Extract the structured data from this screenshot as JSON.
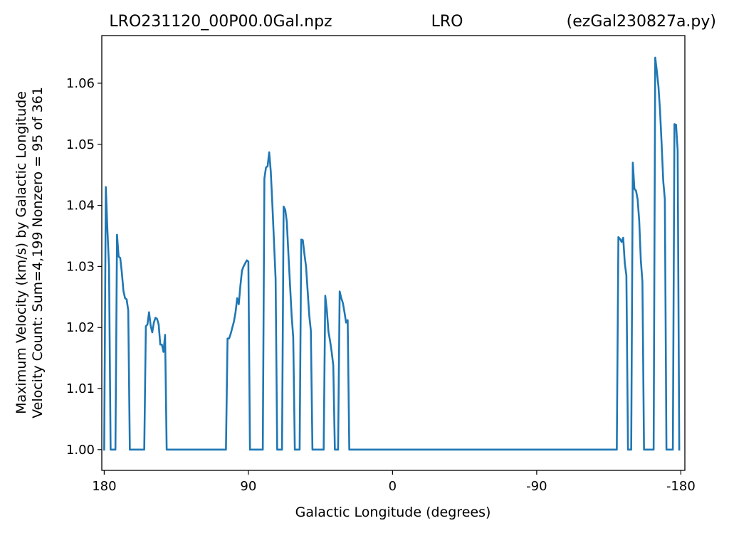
{
  "chart_data": {
    "type": "line",
    "title_left": "LRO231120_00P00.0Gal.npz",
    "title_center": "LRO",
    "title_right": "(ezGal230827a.py)",
    "xlabel": "Galactic Longitude (degrees)",
    "ylabel_line1": "Maximum Velocity (km/s) by Galactic Longitude",
    "ylabel_line2": "Velocity Count: Sum=4,199 Nonzero = 95 of 361",
    "xlim": [
      181.5,
      -182.5
    ],
    "ylim": [
      0.9966,
      1.0678
    ],
    "x_reversed": true,
    "grid": false,
    "color": "#1f77b4",
    "xticks": [
      {
        "value": 180,
        "label": "180"
      },
      {
        "value": 90,
        "label": "90"
      },
      {
        "value": 0,
        "label": "0"
      },
      {
        "value": -90,
        "label": "-90"
      },
      {
        "value": -180,
        "label": "-180"
      }
    ],
    "yticks": [
      {
        "value": 1.0,
        "label": "1.00"
      },
      {
        "value": 1.01,
        "label": "1.01"
      },
      {
        "value": 1.02,
        "label": "1.02"
      },
      {
        "value": 1.03,
        "label": "1.03"
      },
      {
        "value": 1.04,
        "label": "1.04"
      },
      {
        "value": 1.05,
        "label": "1.05"
      },
      {
        "value": 1.06,
        "label": "1.06"
      }
    ],
    "series": [
      {
        "points": [
          [
            180,
            1.0
          ],
          [
            179,
            1.043
          ],
          [
            178,
            1.036
          ],
          [
            177,
            1.03
          ],
          [
            176,
            1.0
          ],
          [
            173,
            1.0
          ],
          [
            172,
            1.0352
          ],
          [
            171,
            1.0316
          ],
          [
            170,
            1.0314
          ],
          [
            169,
            1.029
          ],
          [
            168,
            1.026
          ],
          [
            167,
            1.0248
          ],
          [
            166,
            1.0246
          ],
          [
            165,
            1.0228
          ],
          [
            164,
            1.0
          ],
          [
            155,
            1.0
          ],
          [
            154,
            1.0202
          ],
          [
            153,
            1.0205
          ],
          [
            152,
            1.0225
          ],
          [
            151,
            1.0203
          ],
          [
            150,
            1.0192
          ],
          [
            149,
            1.0208
          ],
          [
            148,
            1.0216
          ],
          [
            147,
            1.0214
          ],
          [
            146,
            1.0205
          ],
          [
            145,
            1.0172
          ],
          [
            144,
            1.0172
          ],
          [
            143,
            1.016
          ],
          [
            142,
            1.0188
          ],
          [
            141,
            1.0
          ],
          [
            104,
            1.0
          ],
          [
            103,
            1.0182
          ],
          [
            102,
            1.0182
          ],
          [
            101,
            1.019
          ],
          [
            100,
            1.02
          ],
          [
            99,
            1.021
          ],
          [
            98,
            1.0225
          ],
          [
            97,
            1.0248
          ],
          [
            96,
            1.0238
          ],
          [
            95,
            1.0268
          ],
          [
            94,
            1.0293
          ],
          [
            93,
            1.03
          ],
          [
            92,
            1.0305
          ],
          [
            91,
            1.031
          ],
          [
            90,
            1.0308
          ],
          [
            89,
            1.0
          ],
          [
            81,
            1.0
          ],
          [
            80,
            1.0444
          ],
          [
            79,
            1.0462
          ],
          [
            78,
            1.0464
          ],
          [
            77,
            1.0487
          ],
          [
            76,
            1.0455
          ],
          [
            75,
            1.04
          ],
          [
            74,
            1.034
          ],
          [
            73,
            1.028
          ],
          [
            72,
            1.0
          ],
          [
            69,
            1.0
          ],
          [
            68,
            1.0398
          ],
          [
            67,
            1.0393
          ],
          [
            66,
            1.0373
          ],
          [
            65,
            1.032
          ],
          [
            64,
            1.027
          ],
          [
            63,
            1.022
          ],
          [
            62,
            1.0184
          ],
          [
            61,
            1.0
          ],
          [
            58,
            1.0
          ],
          [
            57,
            1.0344
          ],
          [
            56,
            1.0343
          ],
          [
            55,
            1.032
          ],
          [
            54,
            1.03
          ],
          [
            53,
            1.026
          ],
          [
            52,
            1.022
          ],
          [
            51,
            1.0195
          ],
          [
            50,
            1.0
          ],
          [
            43,
            1.0
          ],
          [
            42,
            1.0252
          ],
          [
            41,
            1.0228
          ],
          [
            40,
            1.0193
          ],
          [
            39,
            1.0178
          ],
          [
            38,
            1.016
          ],
          [
            37,
            1.0138
          ],
          [
            36,
            1.0
          ],
          [
            34,
            1.0
          ],
          [
            33,
            1.0259
          ],
          [
            32,
            1.0248
          ],
          [
            31,
            1.024
          ],
          [
            30,
            1.0225
          ],
          [
            29,
            1.0208
          ],
          [
            28,
            1.0212
          ],
          [
            27,
            1.0
          ],
          [
            -140,
            1.0
          ],
          [
            -141,
            1.0348
          ],
          [
            -142,
            1.0345
          ],
          [
            -143,
            1.034
          ],
          [
            -144,
            1.0347
          ],
          [
            -145,
            1.0305
          ],
          [
            -146,
            1.0285
          ],
          [
            -147,
            1.0
          ],
          [
            -149,
            1.0
          ],
          [
            -150,
            1.047
          ],
          [
            -151,
            1.0427
          ],
          [
            -152,
            1.0424
          ],
          [
            -153,
            1.041
          ],
          [
            -154,
            1.0375
          ],
          [
            -155,
            1.031
          ],
          [
            -156,
            1.0275
          ],
          [
            -157,
            1.0
          ],
          [
            -163,
            1.0
          ],
          [
            -164,
            1.0642
          ],
          [
            -165,
            1.062
          ],
          [
            -166,
            1.0595
          ],
          [
            -167,
            1.0555
          ],
          [
            -168,
            1.05
          ],
          [
            -169,
            1.044
          ],
          [
            -170,
            1.041
          ],
          [
            -171,
            1.0
          ],
          [
            -175,
            1.0
          ],
          [
            -176,
            1.0533
          ],
          [
            -177,
            1.0532
          ],
          [
            -178,
            1.049
          ],
          [
            -179,
            1.0
          ]
        ]
      }
    ]
  }
}
